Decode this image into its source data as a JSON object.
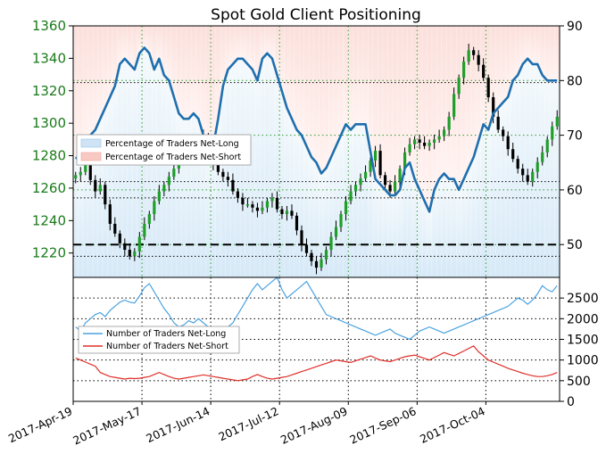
{
  "chart_data": [
    {
      "type": "candlestick-line",
      "title": "Spot Gold Client Positioning",
      "x_ticks": [
        "2017-Apr-19",
        "2017-May-17",
        "2017-Jun-14",
        "2017-Jul-12",
        "2017-Aug-09",
        "2017-Sep-06",
        "2017-Oct-04"
      ],
      "y_left_ticks": [
        "1220",
        "1240",
        "1260",
        "1280",
        "1300",
        "1320",
        "1340",
        "1360"
      ],
      "y_left_range": [
        1205,
        1360
      ],
      "y_right_ticks": [
        "50",
        "60",
        "70",
        "80",
        "90"
      ],
      "y_right_range": [
        44,
        90
      ],
      "horizontal_levels": [
        1218,
        1254,
        1264,
        1325
      ],
      "threshold_percent": 50,
      "legend": [
        "Percentage of Traders Net-Long",
        "Percentage of Traders Net-Short"
      ],
      "legend_position": "left-middle",
      "price_path": [
        1268,
        1270,
        1274,
        1265,
        1258,
        1262,
        1250,
        1238,
        1232,
        1226,
        1222,
        1218,
        1221,
        1230,
        1238,
        1244,
        1252,
        1258,
        1262,
        1267,
        1272,
        1278,
        1284,
        1287,
        1283,
        1287,
        1292,
        1282,
        1275,
        1270,
        1267,
        1265,
        1258,
        1254,
        1250,
        1250,
        1248,
        1246,
        1248,
        1252,
        1254,
        1247,
        1244,
        1246,
        1243,
        1234,
        1225,
        1220,
        1215,
        1211,
        1216,
        1222,
        1230,
        1236,
        1244,
        1252,
        1258,
        1262,
        1266,
        1270,
        1277,
        1283,
        1268,
        1262,
        1258,
        1264,
        1272,
        1282,
        1287,
        1290,
        1288,
        1286,
        1288,
        1290,
        1292,
        1296,
        1304,
        1318,
        1328,
        1338,
        1345,
        1342,
        1336,
        1328,
        1316,
        1304,
        1296,
        1292,
        1284,
        1278,
        1272,
        1268,
        1264,
        1270,
        1276,
        1282,
        1290,
        1298,
        1304
      ],
      "percent_net_long": [
        66,
        65,
        69,
        70,
        71,
        73,
        75,
        77,
        79,
        83,
        84,
        83,
        82,
        85,
        86,
        85,
        82,
        84,
        81,
        80,
        77,
        74,
        73,
        73,
        74,
        73,
        70,
        67,
        68,
        73,
        79,
        82,
        83,
        84,
        84,
        83,
        82,
        80,
        84,
        85,
        84,
        81,
        78,
        75,
        73,
        71,
        70,
        68,
        66,
        65,
        63,
        64,
        66,
        68,
        70,
        72,
        71,
        72,
        72,
        72,
        67,
        62,
        61,
        60,
        59,
        59,
        60,
        64,
        65,
        62,
        60,
        58,
        56,
        60,
        62,
        63,
        62,
        62,
        60,
        62,
        64,
        66,
        69,
        72,
        71,
        74,
        75,
        76,
        77,
        80,
        81,
        83,
        84,
        83,
        83,
        81,
        80,
        80,
        80
      ]
    },
    {
      "type": "line",
      "x_ticks": [
        "2017-Apr-19",
        "2017-May-17",
        "2017-Jun-14",
        "2017-Jul-12",
        "2017-Aug-09",
        "2017-Sep-06",
        "2017-Oct-04"
      ],
      "y_ticks": [
        "0",
        "500",
        "1000",
        "1500",
        "2000",
        "2500"
      ],
      "y_range": [
        0,
        3000
      ],
      "legend": [
        "Number of Traders Net-Long",
        "Number of Traders Net-Short"
      ],
      "legend_position": "left-middle",
      "series": [
        {
          "name": "Number of Traders Net-Long",
          "color": "#4aa3e0",
          "values": [
            1800,
            1700,
            1900,
            2000,
            2100,
            2150,
            2050,
            2200,
            2300,
            2400,
            2450,
            2400,
            2380,
            2550,
            2750,
            2850,
            2650,
            2450,
            2250,
            2100,
            1900,
            1800,
            1850,
            1950,
            1900,
            2000,
            1900,
            1800,
            1750,
            1600,
            1700,
            1800,
            1900,
            2100,
            2300,
            2500,
            2700,
            2850,
            2700,
            2800,
            2900,
            3000,
            2700,
            2500,
            2600,
            2700,
            2800,
            2900,
            2700,
            2500,
            2300,
            2100,
            2050,
            2000,
            1950,
            1900,
            1850,
            1800,
            1750,
            1700,
            1650,
            1600,
            1650,
            1700,
            1750,
            1650,
            1600,
            1550,
            1500,
            1600,
            1700,
            1750,
            1800,
            1750,
            1700,
            1650,
            1700,
            1750,
            1800,
            1850,
            1900,
            1950,
            2000,
            2050,
            2100,
            2150,
            2200,
            2250,
            2300,
            2400,
            2500,
            2450,
            2350,
            2450,
            2600,
            2800,
            2700,
            2650,
            2800
          ]
        },
        {
          "name": "Number of Traders Net-Short",
          "color": "#e0302a",
          "values": [
            1050,
            1000,
            950,
            900,
            850,
            700,
            650,
            600,
            580,
            560,
            540,
            560,
            550,
            560,
            580,
            600,
            650,
            700,
            650,
            600,
            560,
            540,
            560,
            580,
            600,
            620,
            640,
            620,
            600,
            580,
            560,
            540,
            520,
            500,
            520,
            540,
            600,
            650,
            600,
            560,
            540,
            560,
            580,
            600,
            640,
            680,
            720,
            760,
            800,
            840,
            880,
            920,
            960,
            1000,
            980,
            960,
            940,
            980,
            1020,
            1060,
            1100,
            1050,
            1000,
            980,
            960,
            1000,
            1040,
            1080,
            1100,
            1120,
            1080,
            1040,
            1000,
            1060,
            1120,
            1180,
            1140,
            1100,
            1160,
            1220,
            1280,
            1340,
            1200,
            1100,
            1000,
            950,
            900,
            850,
            800,
            760,
            720,
            680,
            650,
            620,
            600,
            600,
            620,
            650,
            700
          ]
        }
      ]
    }
  ]
}
